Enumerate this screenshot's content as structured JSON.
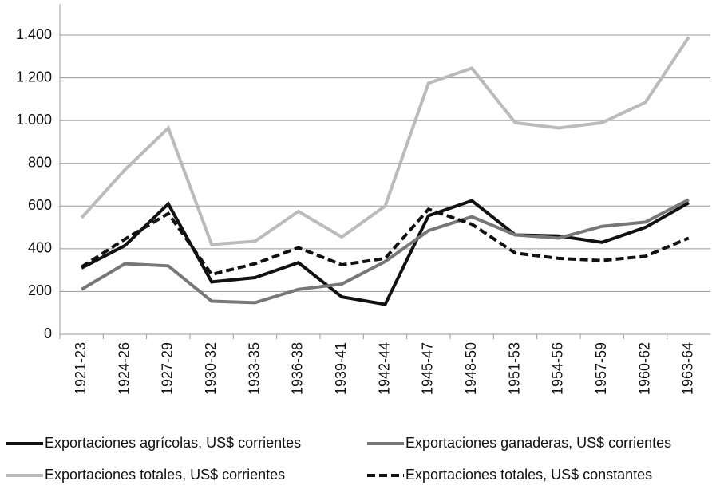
{
  "chart_data": {
    "type": "line",
    "categories": [
      "1921-23",
      "1924-26",
      "1927-29",
      "1930-32",
      "1933-35",
      "1936-38",
      "1939-41",
      "1942-44",
      "1945-47",
      "1948-50",
      "1951-53",
      "1954-56",
      "1957-59",
      "1960-62",
      "1963-64"
    ],
    "series": [
      {
        "name": "Exportaciones agrícolas, US$ corrientes",
        "color": "#111111",
        "dash": false,
        "values": [
          310,
          415,
          610,
          245,
          265,
          335,
          175,
          140,
          555,
          625,
          465,
          460,
          430,
          500,
          615
        ]
      },
      {
        "name": "Exportaciones ganaderas, US$ corrientes",
        "color": "#777777",
        "dash": false,
        "values": [
          210,
          330,
          320,
          155,
          148,
          210,
          235,
          340,
          485,
          550,
          465,
          450,
          505,
          525,
          630
        ]
      },
      {
        "name": "Exportaciones totales, US$ corrientes",
        "color": "#bbbbbb",
        "dash": false,
        "values": [
          545,
          770,
          965,
          420,
          435,
          575,
          455,
          600,
          1175,
          1245,
          990,
          965,
          990,
          1085,
          1390
        ]
      },
      {
        "name": "Exportaciones totales, US$ constantes",
        "color": "#111111",
        "dash": true,
        "values": [
          315,
          445,
          565,
          280,
          330,
          405,
          325,
          355,
          585,
          515,
          380,
          355,
          345,
          365,
          450
        ]
      }
    ],
    "ylim": [
      0,
      1400
    ],
    "yticks": [
      0,
      200,
      400,
      600,
      800,
      {
        "value": 1000,
        "label": "1.000"
      },
      {
        "value": 1200,
        "label": "1.200"
      },
      {
        "value": 1400,
        "label": "1.400"
      }
    ],
    "grid": true
  }
}
